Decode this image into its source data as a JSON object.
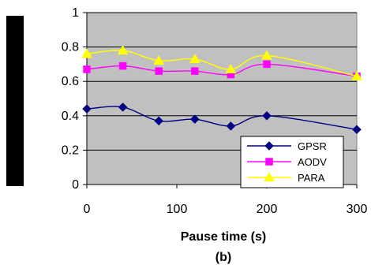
{
  "chart_data": {
    "type": "line",
    "title": "",
    "xlabel": "Pause time (s)",
    "ylabel": "",
    "caption": "(b)",
    "xlim": [
      0,
      300
    ],
    "ylim": [
      0,
      1
    ],
    "x_ticks": [
      0,
      100,
      200,
      300
    ],
    "y_ticks": [
      0,
      0.2,
      0.4,
      0.6,
      0.8,
      1
    ],
    "y_tick_labels": [
      "0",
      "0.2",
      "0.4",
      "0.6",
      "0.8",
      "1"
    ],
    "grid": "horizontal",
    "plot_background": "#C0C0C0",
    "legend_position": "bottom-right",
    "x": [
      0,
      40,
      80,
      120,
      160,
      200,
      300
    ],
    "series": [
      {
        "name": "GPSR",
        "color": "#000080",
        "marker": "diamond",
        "values": [
          0.44,
          0.45,
          0.37,
          0.38,
          0.34,
          0.4,
          0.32
        ]
      },
      {
        "name": "AODV",
        "color": "#FF00FF",
        "marker": "square",
        "values": [
          0.67,
          0.69,
          0.66,
          0.66,
          0.64,
          0.7,
          0.63
        ]
      },
      {
        "name": "PARA",
        "color": "#FFFF00",
        "marker": "triangle",
        "values": [
          0.76,
          0.78,
          0.72,
          0.73,
          0.67,
          0.75,
          0.63
        ]
      }
    ]
  }
}
